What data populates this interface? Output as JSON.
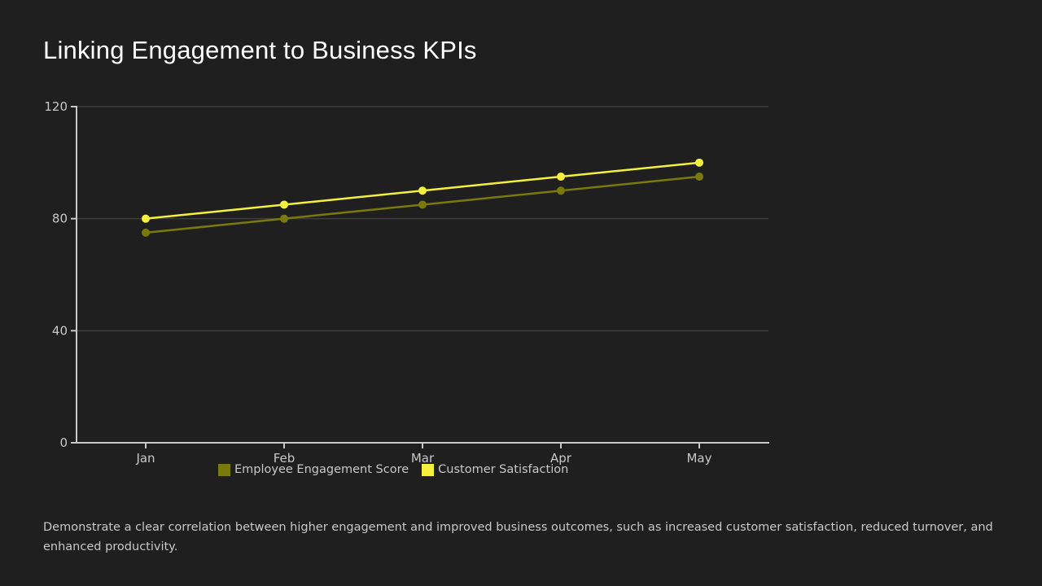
{
  "title": "Linking Engagement to Business KPIs",
  "description": "Demonstrate a clear correlation between higher engagement and improved business outcomes, such as increased customer satisfaction, reduced turnover, and enhanced productivity.",
  "chart_data": {
    "type": "line",
    "title": "Linking Engagement to Business KPIs",
    "xlabel": "",
    "ylabel": "",
    "categories": [
      "Jan",
      "Feb",
      "Mar",
      "Apr",
      "May"
    ],
    "ylim": [
      0,
      120
    ],
    "yticks": [
      0,
      40,
      80,
      120
    ],
    "grid": true,
    "legend_position": "bottom",
    "series": [
      {
        "name": "Employee Engagement Score",
        "color": "#7a7a0c",
        "values": [
          75,
          80,
          85,
          90,
          95
        ]
      },
      {
        "name": "Customer Satisfaction",
        "color": "#f5f03c",
        "values": [
          80,
          85,
          90,
          95,
          100
        ]
      }
    ]
  }
}
